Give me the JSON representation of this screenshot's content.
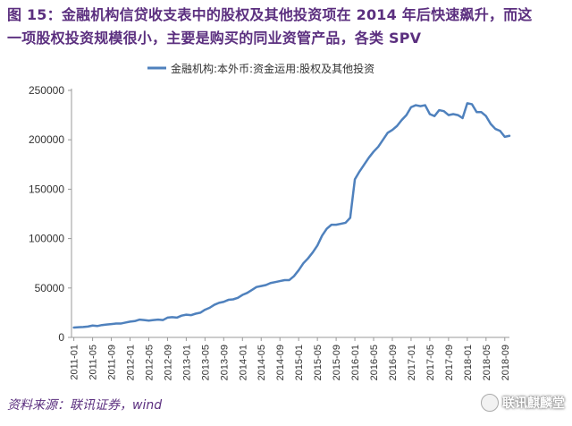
{
  "header": {
    "title_line1": "图 15：金融机构信贷收支表中的股权及其他投资项在 2014 年后快速飙升，而这",
    "title_line2": "一项股权投资规模很小，主要是购买的同业资管产品，各类 SPV"
  },
  "source": "资料来源：联讯证券，wind",
  "watermark": {
    "text": "联讯麒麟堂",
    "icon": "wechat-icon"
  },
  "chart_data": {
    "type": "line",
    "title": "",
    "xlabel": "",
    "ylabel": "",
    "ylim": [
      0,
      250000
    ],
    "yticks": [
      "0",
      "50000",
      "100000",
      "150000",
      "200000",
      "250000"
    ],
    "xticks": [
      "2011-01",
      "2011-05",
      "2011-09",
      "2012-01",
      "2012-05",
      "2012-09",
      "2013-01",
      "2013-05",
      "2013-09",
      "2014-01",
      "2014-05",
      "2014-09",
      "2015-01",
      "2015-05",
      "2015-09",
      "2016-01",
      "2016-05",
      "2016-09",
      "2017-01",
      "2017-05",
      "2017-09",
      "2018-01",
      "2018-05",
      "2018-09"
    ],
    "legend_position": "top-left",
    "grid": false,
    "colors": {
      "series": "#4f81bd",
      "title": "#5b2f7f",
      "axis": "#999999"
    },
    "series": [
      {
        "name": "金融机构:本外币:资金运用:股权及其他投资",
        "x": [
          "2011-01",
          "2011-02",
          "2011-03",
          "2011-04",
          "2011-05",
          "2011-06",
          "2011-07",
          "2011-08",
          "2011-09",
          "2011-10",
          "2011-11",
          "2011-12",
          "2012-01",
          "2012-02",
          "2012-03",
          "2012-04",
          "2012-05",
          "2012-06",
          "2012-07",
          "2012-08",
          "2012-09",
          "2012-10",
          "2012-11",
          "2012-12",
          "2013-01",
          "2013-02",
          "2013-03",
          "2013-04",
          "2013-05",
          "2013-06",
          "2013-07",
          "2013-08",
          "2013-09",
          "2013-10",
          "2013-11",
          "2013-12",
          "2014-01",
          "2014-02",
          "2014-03",
          "2014-04",
          "2014-05",
          "2014-06",
          "2014-07",
          "2014-08",
          "2014-09",
          "2014-10",
          "2014-11",
          "2014-12",
          "2015-01",
          "2015-02",
          "2015-03",
          "2015-04",
          "2015-05",
          "2015-06",
          "2015-07",
          "2015-08",
          "2015-09",
          "2015-10",
          "2015-11",
          "2015-12",
          "2016-01",
          "2016-02",
          "2016-03",
          "2016-04",
          "2016-05",
          "2016-06",
          "2016-07",
          "2016-08",
          "2016-09",
          "2016-10",
          "2016-11",
          "2016-12",
          "2017-01",
          "2017-02",
          "2017-03",
          "2017-04",
          "2017-05",
          "2017-06",
          "2017-07",
          "2017-08",
          "2017-09",
          "2017-10",
          "2017-11",
          "2017-12",
          "2018-01",
          "2018-02",
          "2018-03",
          "2018-04",
          "2018-05",
          "2018-06",
          "2018-07",
          "2018-08",
          "2018-09",
          "2018-10"
        ],
        "values": [
          10000,
          10300,
          10500,
          11000,
          12000,
          11500,
          12500,
          13000,
          13500,
          14000,
          14000,
          15000,
          16000,
          16500,
          18000,
          17500,
          17000,
          17500,
          18000,
          17500,
          20000,
          20500,
          20000,
          22000,
          23000,
          22500,
          24000,
          25000,
          28000,
          30000,
          33000,
          35000,
          36000,
          38000,
          38500,
          40000,
          43000,
          45000,
          48000,
          51000,
          52000,
          53000,
          55000,
          56000,
          57000,
          58000,
          58000,
          62000,
          68000,
          75000,
          80000,
          86000,
          93000,
          103000,
          110000,
          114000,
          114000,
          115000,
          116000,
          121000,
          160000,
          168000,
          175000,
          182000,
          188000,
          193000,
          200000,
          207000,
          210000,
          214000,
          220000,
          225000,
          233000,
          235000,
          234000,
          235000,
          226000,
          224000,
          230000,
          229000,
          225000,
          226000,
          225000,
          222000,
          237000,
          236000,
          228000,
          228000,
          224000,
          216000,
          211000,
          209000,
          203000,
          204000
        ]
      }
    ]
  }
}
